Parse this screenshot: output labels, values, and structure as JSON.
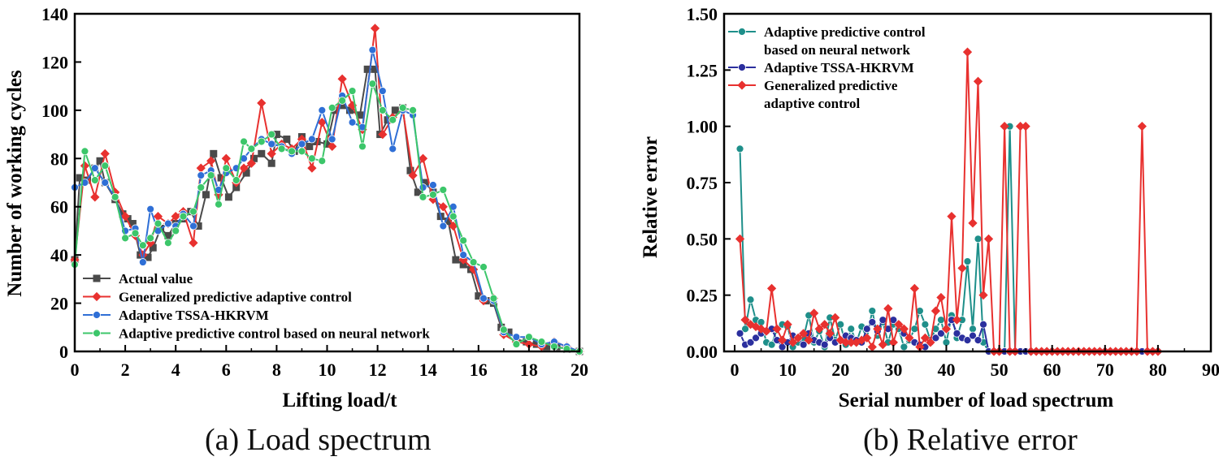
{
  "colors": {
    "actual": "#4a4a4a",
    "generalized": "#e8312f",
    "tssa": "#2f6fd6",
    "tssa_b": "#2b2f9e",
    "neural": "#3cc66a",
    "neural_b": "#1e8f8a",
    "axis": "#000000"
  },
  "chart_data": [
    {
      "type": "line",
      "caption": "(a) Load spectrum",
      "xlabel": "Lifting load/t",
      "ylabel": "Number of working cycles",
      "xlim": [
        0,
        20
      ],
      "ylim": [
        0,
        140
      ],
      "xticks": [
        "0",
        "2",
        "4",
        "6",
        "8",
        "10",
        "12",
        "14",
        "16",
        "18",
        "20"
      ],
      "yticks": [
        "0",
        "20",
        "40",
        "60",
        "80",
        "100",
        "120",
        "140"
      ],
      "legend_position": "bottom-left",
      "series": [
        {
          "name": "Actual value",
          "color_key": "actual",
          "marker": "square",
          "x": [
            0,
            0.2,
            0.5,
            0.8,
            1.0,
            1.2,
            1.6,
            1.9,
            2.1,
            2.3,
            2.6,
            2.9,
            3.1,
            3.4,
            3.7,
            4.0,
            4.3,
            4.6,
            4.9,
            5.2,
            5.5,
            5.8,
            6.1,
            6.4,
            6.8,
            7.1,
            7.4,
            7.8,
            8.0,
            8.4,
            8.7,
            9.0,
            9.3,
            9.6,
            10.0,
            10.3,
            10.6,
            10.9,
            11.3,
            11.6,
            11.9,
            12.1,
            12.4,
            12.7,
            13.0,
            13.3,
            13.6,
            13.9,
            14.2,
            14.5,
            14.8,
            15.1,
            15.4,
            15.7,
            16.0,
            16.3,
            16.6,
            16.9,
            17.2,
            17.5,
            17.9,
            18.3,
            18.7,
            19.1,
            19.5,
            20.0
          ],
          "values": [
            38,
            72,
            71,
            76,
            79,
            70,
            63,
            57,
            55,
            53,
            40,
            39,
            43,
            51,
            48,
            53,
            55,
            58,
            52,
            65,
            82,
            72,
            64,
            68,
            74,
            80,
            82,
            78,
            90,
            88,
            83,
            89,
            85,
            87,
            86,
            100,
            102,
            100,
            98,
            117,
            117,
            90,
            96,
            100,
            101,
            75,
            66,
            70,
            66,
            56,
            54,
            38,
            36,
            34,
            23,
            21,
            20,
            10,
            8,
            5,
            4,
            3,
            2,
            2,
            1,
            0
          ]
        },
        {
          "name": "Generalized predictive adaptive control",
          "color_key": "generalized",
          "marker": "diamond",
          "x": [
            0,
            0.4,
            0.8,
            1.2,
            1.6,
            2.0,
            2.4,
            2.7,
            3.0,
            3.3,
            3.7,
            4.0,
            4.3,
            4.7,
            5.0,
            5.4,
            5.7,
            6.0,
            6.4,
            6.7,
            7.0,
            7.4,
            7.8,
            8.2,
            8.6,
            9.0,
            9.4,
            9.8,
            10.2,
            10.6,
            11.0,
            11.4,
            11.9,
            12.2,
            12.6,
            13.0,
            13.4,
            13.8,
            14.2,
            14.6,
            15.0,
            15.4,
            15.8,
            16.2,
            16.6,
            17.0,
            17.5,
            18.0,
            18.5,
            19.0,
            19.5,
            20.0
          ],
          "values": [
            38,
            77,
            64,
            82,
            66,
            56,
            48,
            40,
            45,
            56,
            53,
            56,
            58,
            45,
            76,
            79,
            65,
            80,
            70,
            76,
            78,
            103,
            82,
            86,
            84,
            88,
            76,
            95,
            85,
            113,
            102,
            92,
            134,
            90,
            97,
            100,
            73,
            80,
            63,
            60,
            52,
            38,
            34,
            21,
            22,
            7,
            4,
            3,
            2,
            4,
            2,
            0
          ]
        },
        {
          "name": "Adaptive TSSA-HKRVM",
          "color_key": "tssa",
          "marker": "circle",
          "x": [
            0,
            0.4,
            0.8,
            1.2,
            1.6,
            2.0,
            2.4,
            2.7,
            3.0,
            3.3,
            3.7,
            4.0,
            4.3,
            4.7,
            5.0,
            5.4,
            5.7,
            6.0,
            6.4,
            6.7,
            7.0,
            7.4,
            7.8,
            8.2,
            8.6,
            9.0,
            9.4,
            9.8,
            10.2,
            10.6,
            11.0,
            11.4,
            11.8,
            12.2,
            12.6,
            13.0,
            13.4,
            13.8,
            14.2,
            14.6,
            15.0,
            15.4,
            15.8,
            16.2,
            16.6,
            17.0,
            17.5,
            18.0,
            18.5,
            19.0,
            19.5,
            20.0
          ],
          "values": [
            68,
            70,
            76,
            70,
            64,
            50,
            51,
            37,
            59,
            50,
            53,
            52,
            57,
            52,
            73,
            75,
            67,
            74,
            76,
            80,
            84,
            88,
            86,
            85,
            82,
            86,
            88,
            100,
            88,
            106,
            95,
            93,
            125,
            108,
            84,
            100,
            98,
            68,
            69,
            52,
            60,
            40,
            37,
            22,
            21,
            8,
            6,
            6,
            3,
            4,
            2,
            0
          ]
        },
        {
          "name": "Adaptive predictive control based on neural network",
          "color_key": "neural",
          "marker": "circle",
          "x": [
            0,
            0.4,
            0.8,
            1.2,
            1.6,
            2.0,
            2.4,
            2.7,
            3.0,
            3.3,
            3.7,
            4.0,
            4.3,
            4.7,
            5.0,
            5.4,
            5.7,
            6.0,
            6.4,
            6.7,
            7.0,
            7.4,
            7.8,
            8.2,
            8.6,
            9.0,
            9.4,
            9.8,
            10.2,
            10.6,
            11.0,
            11.4,
            11.8,
            12.2,
            12.6,
            13.0,
            13.4,
            13.8,
            14.2,
            14.6,
            15.0,
            15.4,
            15.8,
            16.2,
            16.6,
            17.0,
            17.5,
            18.0,
            18.5,
            19.0,
            19.5,
            20.0
          ],
          "values": [
            36,
            83,
            71,
            77,
            64,
            47,
            49,
            44,
            47,
            53,
            45,
            50,
            56,
            58,
            68,
            73,
            61,
            76,
            71,
            87,
            84,
            87,
            90,
            84,
            83,
            83,
            80,
            79,
            101,
            104,
            108,
            85,
            111,
            100,
            96,
            101,
            100,
            64,
            65,
            67,
            56,
            46,
            37,
            35,
            22,
            9,
            3,
            6,
            4,
            2,
            1,
            0
          ]
        }
      ]
    },
    {
      "type": "line",
      "caption": "(b) Relative error",
      "xlabel": "Serial number of load spectrum",
      "ylabel": "Relative error",
      "xlim": [
        -2,
        90
      ],
      "ylim": [
        0,
        1.5
      ],
      "xticks": [
        "0",
        "10",
        "20",
        "30",
        "40",
        "50",
        "60",
        "70",
        "80",
        "90"
      ],
      "yticks": [
        "0.00",
        "0.25",
        "0.50",
        "0.75",
        "1.00",
        "1.25",
        "1.50"
      ],
      "legend_position": "top-left",
      "series": [
        {
          "name": "Adaptive predictive control based on neural network",
          "legend_lines": [
            "Adaptive predictive control",
            "based on neural network"
          ],
          "color_key": "neural_b",
          "marker": "circle",
          "x": [
            1,
            2,
            3,
            4,
            5,
            6,
            7,
            8,
            9,
            10,
            11,
            12,
            13,
            14,
            15,
            16,
            17,
            18,
            19,
            20,
            21,
            22,
            23,
            24,
            25,
            26,
            27,
            28,
            29,
            30,
            31,
            32,
            33,
            34,
            35,
            36,
            37,
            38,
            39,
            40,
            41,
            42,
            43,
            44,
            45,
            46,
            47,
            48,
            49,
            50,
            51,
            52,
            53,
            54,
            55,
            56,
            57,
            58,
            59,
            60,
            61,
            62,
            63,
            64,
            65,
            66,
            67,
            68,
            69,
            70,
            71,
            72,
            73,
            74,
            75,
            76,
            77,
            78,
            79,
            80
          ],
          "values": [
            0.9,
            0.1,
            0.23,
            0.14,
            0.13,
            0.04,
            0.03,
            0.1,
            0.12,
            0.11,
            0.02,
            0.04,
            0.06,
            0.16,
            0.04,
            0.09,
            0.02,
            0.15,
            0.05,
            0.12,
            0.03,
            0.1,
            0.04,
            0.11,
            0.06,
            0.18,
            0.07,
            0.13,
            0.04,
            0.12,
            0.1,
            0.02,
            0.05,
            0.1,
            0.18,
            0.12,
            0.05,
            0.1,
            0.14,
            0.04,
            0.16,
            0.06,
            0.14,
            0.4,
            0.1,
            0.5,
            0.04,
            0.0,
            0.0,
            0.0,
            0.0,
            1.0,
            0.0,
            0.0,
            0.0,
            0.0,
            0.0,
            0.0,
            0.0,
            0.0,
            0.0,
            0.0,
            0.0,
            0.0,
            0.0,
            0.0,
            0.0,
            0.0,
            0.0,
            0.0,
            0.0,
            0.0,
            0.0,
            0.0,
            0.0,
            0.0,
            0.0,
            0.0,
            0.0,
            0.0
          ]
        },
        {
          "name": "Adaptive TSSA-HKRVM",
          "color_key": "tssa_b",
          "marker": "circle",
          "x": [
            1,
            2,
            3,
            4,
            5,
            6,
            7,
            8,
            9,
            10,
            11,
            12,
            13,
            14,
            15,
            16,
            17,
            18,
            19,
            20,
            21,
            22,
            23,
            24,
            25,
            26,
            27,
            28,
            29,
            30,
            31,
            32,
            33,
            34,
            35,
            36,
            37,
            38,
            39,
            40,
            41,
            42,
            43,
            44,
            45,
            46,
            47,
            48,
            49,
            50,
            51,
            52,
            53,
            54,
            55,
            56,
            57,
            58,
            59,
            60,
            61,
            62,
            63,
            64,
            65,
            66,
            67,
            68,
            69,
            70,
            71,
            72,
            73,
            74,
            75,
            76,
            77,
            78,
            79,
            80
          ],
          "values": [
            0.08,
            0.03,
            0.04,
            0.06,
            0.08,
            0.09,
            0.1,
            0.05,
            0.02,
            0.04,
            0.07,
            0.06,
            0.03,
            0.08,
            0.05,
            0.04,
            0.03,
            0.06,
            0.04,
            0.05,
            0.07,
            0.06,
            0.05,
            0.04,
            0.1,
            0.13,
            0.09,
            0.14,
            0.1,
            0.14,
            0.12,
            0.08,
            0.06,
            0.04,
            0.03,
            0.02,
            0.04,
            0.06,
            0.08,
            0.1,
            0.14,
            0.08,
            0.06,
            0.05,
            0.07,
            0.05,
            0.12,
            0.0,
            0.0,
            0.0,
            0.0,
            0.0,
            0.0,
            0.0,
            0.0,
            0.0,
            0.0,
            0.0,
            0.0,
            0.0,
            0.0,
            0.0,
            0.0,
            0.0,
            0.0,
            0.0,
            0.0,
            0.0,
            0.0,
            0.0,
            0.0,
            0.0,
            0.0,
            0.0,
            0.0,
            0.0,
            0.0,
            0.0,
            0.0,
            0.0
          ]
        },
        {
          "name": "Generalized predictive adaptive control",
          "legend_lines": [
            "Generalized predictive",
            " adaptive control"
          ],
          "color_key": "generalized",
          "marker": "diamond",
          "x": [
            1,
            2,
            3,
            4,
            5,
            6,
            7,
            8,
            9,
            10,
            11,
            12,
            13,
            14,
            15,
            16,
            17,
            18,
            19,
            20,
            21,
            22,
            23,
            24,
            25,
            26,
            27,
            28,
            29,
            30,
            31,
            32,
            33,
            34,
            35,
            36,
            37,
            38,
            39,
            40,
            41,
            42,
            43,
            44,
            45,
            46,
            47,
            48,
            49,
            50,
            51,
            52,
            53,
            54,
            55,
            56,
            57,
            58,
            59,
            60,
            61,
            62,
            63,
            64,
            65,
            66,
            67,
            68,
            69,
            70,
            71,
            72,
            73,
            74,
            75,
            76,
            77,
            78,
            79,
            80
          ],
          "values": [
            0.5,
            0.14,
            0.12,
            0.11,
            0.1,
            0.09,
            0.28,
            0.1,
            0.05,
            0.12,
            0.04,
            0.06,
            0.08,
            0.05,
            0.17,
            0.1,
            0.12,
            0.08,
            0.15,
            0.05,
            0.04,
            0.04,
            0.04,
            0.05,
            0.06,
            0.02,
            0.1,
            0.03,
            0.19,
            0.04,
            0.12,
            0.1,
            0.06,
            0.28,
            0.02,
            0.06,
            0.04,
            0.18,
            0.24,
            0.1,
            0.6,
            0.14,
            0.37,
            1.33,
            0.57,
            1.2,
            0.25,
            0.5,
            0.0,
            0.0,
            1.0,
            0.0,
            0.0,
            1.0,
            1.0,
            0.0,
            0.0,
            0.0,
            0.0,
            0.0,
            0.0,
            0.0,
            0.0,
            0.0,
            0.0,
            0.0,
            0.0,
            0.0,
            0.0,
            0.0,
            0.0,
            0.0,
            0.0,
            0.0,
            0.0,
            0.0,
            1.0,
            0.0,
            0.0,
            0.0
          ]
        }
      ]
    }
  ]
}
